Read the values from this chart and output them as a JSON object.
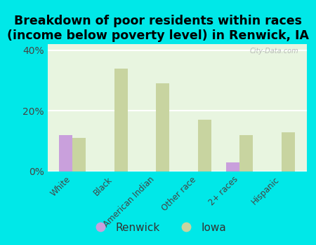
{
  "title": "Breakdown of poor residents within races\n(income below poverty level) in Renwick, IA",
  "categories": [
    "White",
    "Black",
    "American Indian",
    "Other race",
    "2+ races",
    "Hispanic"
  ],
  "renwick_values": [
    12.0,
    0.0,
    0.0,
    0.0,
    3.0,
    0.0
  ],
  "iowa_values": [
    11.0,
    34.0,
    29.0,
    17.0,
    12.0,
    13.0
  ],
  "renwick_color": "#c9a0dc",
  "iowa_color": "#c8d4a0",
  "background_color": "#00e8e8",
  "plot_bg_color": "#e8f5e0",
  "ylim": [
    0,
    42
  ],
  "yticks": [
    0,
    20,
    40
  ],
  "ytick_labels": [
    "0%",
    "20%",
    "40%"
  ],
  "bar_width": 0.32,
  "title_fontsize": 12.5,
  "legend_labels": [
    "Renwick",
    "Iowa"
  ],
  "watermark": "City-Data.com"
}
